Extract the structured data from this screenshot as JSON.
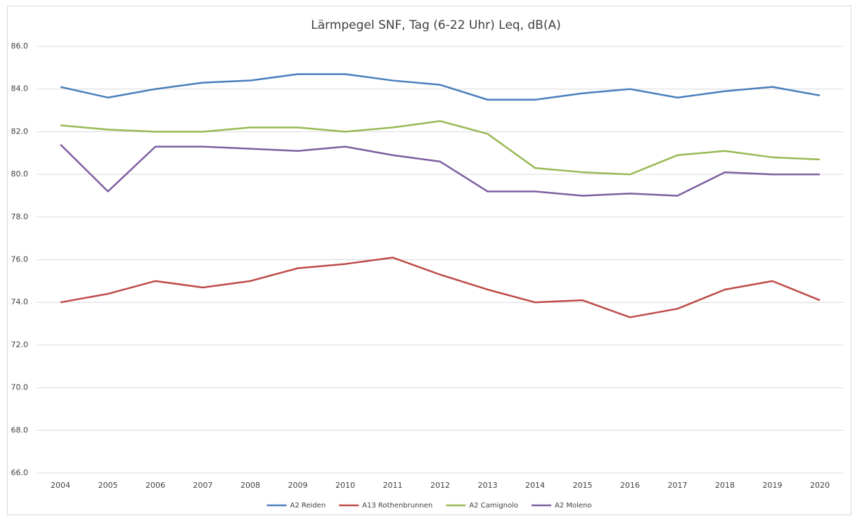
{
  "chart_data": {
    "type": "line",
    "title": "Lärmpegel SNF, Tag (6-22 Uhr) Leq, dB(A)",
    "categories": [
      "2004",
      "2005",
      "2006",
      "2007",
      "2008",
      "2009",
      "2010",
      "2011",
      "2012",
      "2013",
      "2014",
      "2015",
      "2016",
      "2017",
      "2018",
      "2019",
      "2020"
    ],
    "series": [
      {
        "name": "A2 Reiden",
        "color": "#4a7ebb",
        "values": [
          84.1,
          83.6,
          84.0,
          84.3,
          84.4,
          84.7,
          84.7,
          84.4,
          84.2,
          83.5,
          83.5,
          83.8,
          84.0,
          83.6,
          83.9,
          84.1,
          83.7
        ]
      },
      {
        "name": "A13 Rothenbrunnen",
        "color": "#be4b48",
        "values": [
          74.0,
          74.4,
          75.0,
          74.7,
          75.0,
          75.6,
          75.8,
          76.1,
          75.3,
          74.6,
          74.0,
          74.1,
          73.3,
          73.7,
          74.6,
          75.0,
          74.1
        ]
      },
      {
        "name": "A2 Camignolo",
        "color": "#98b954",
        "values": [
          82.3,
          82.1,
          82.0,
          82.0,
          82.2,
          82.2,
          82.0,
          82.2,
          82.5,
          81.9,
          80.3,
          80.1,
          80.0,
          80.9,
          81.1,
          80.8,
          80.7
        ]
      },
      {
        "name": "A2 Moleno",
        "color": "#7d5fa0",
        "values": [
          81.4,
          79.2,
          81.3,
          81.3,
          81.2,
          81.1,
          81.3,
          80.9,
          80.6,
          79.2,
          79.2,
          79.0,
          79.1,
          79.0,
          80.1,
          80.0,
          80.0
        ]
      }
    ],
    "ylim": [
      66,
      86
    ],
    "yticks": [
      {
        "value": 66,
        "label": "66.0"
      },
      {
        "value": 68,
        "label": "68.0"
      },
      {
        "value": 70,
        "label": "70.0"
      },
      {
        "value": 72,
        "label": "72.0"
      },
      {
        "value": 74,
        "label": "74.0"
      },
      {
        "value": 76,
        "label": "76.0"
      },
      {
        "value": 78,
        "label": "78.0"
      },
      {
        "value": 80,
        "label": "80.0"
      },
      {
        "value": 82,
        "label": "82.0"
      },
      {
        "value": 84,
        "label": "84.0"
      },
      {
        "value": 86,
        "label": "86.0"
      }
    ],
    "grid": true,
    "legend": "bottom"
  }
}
